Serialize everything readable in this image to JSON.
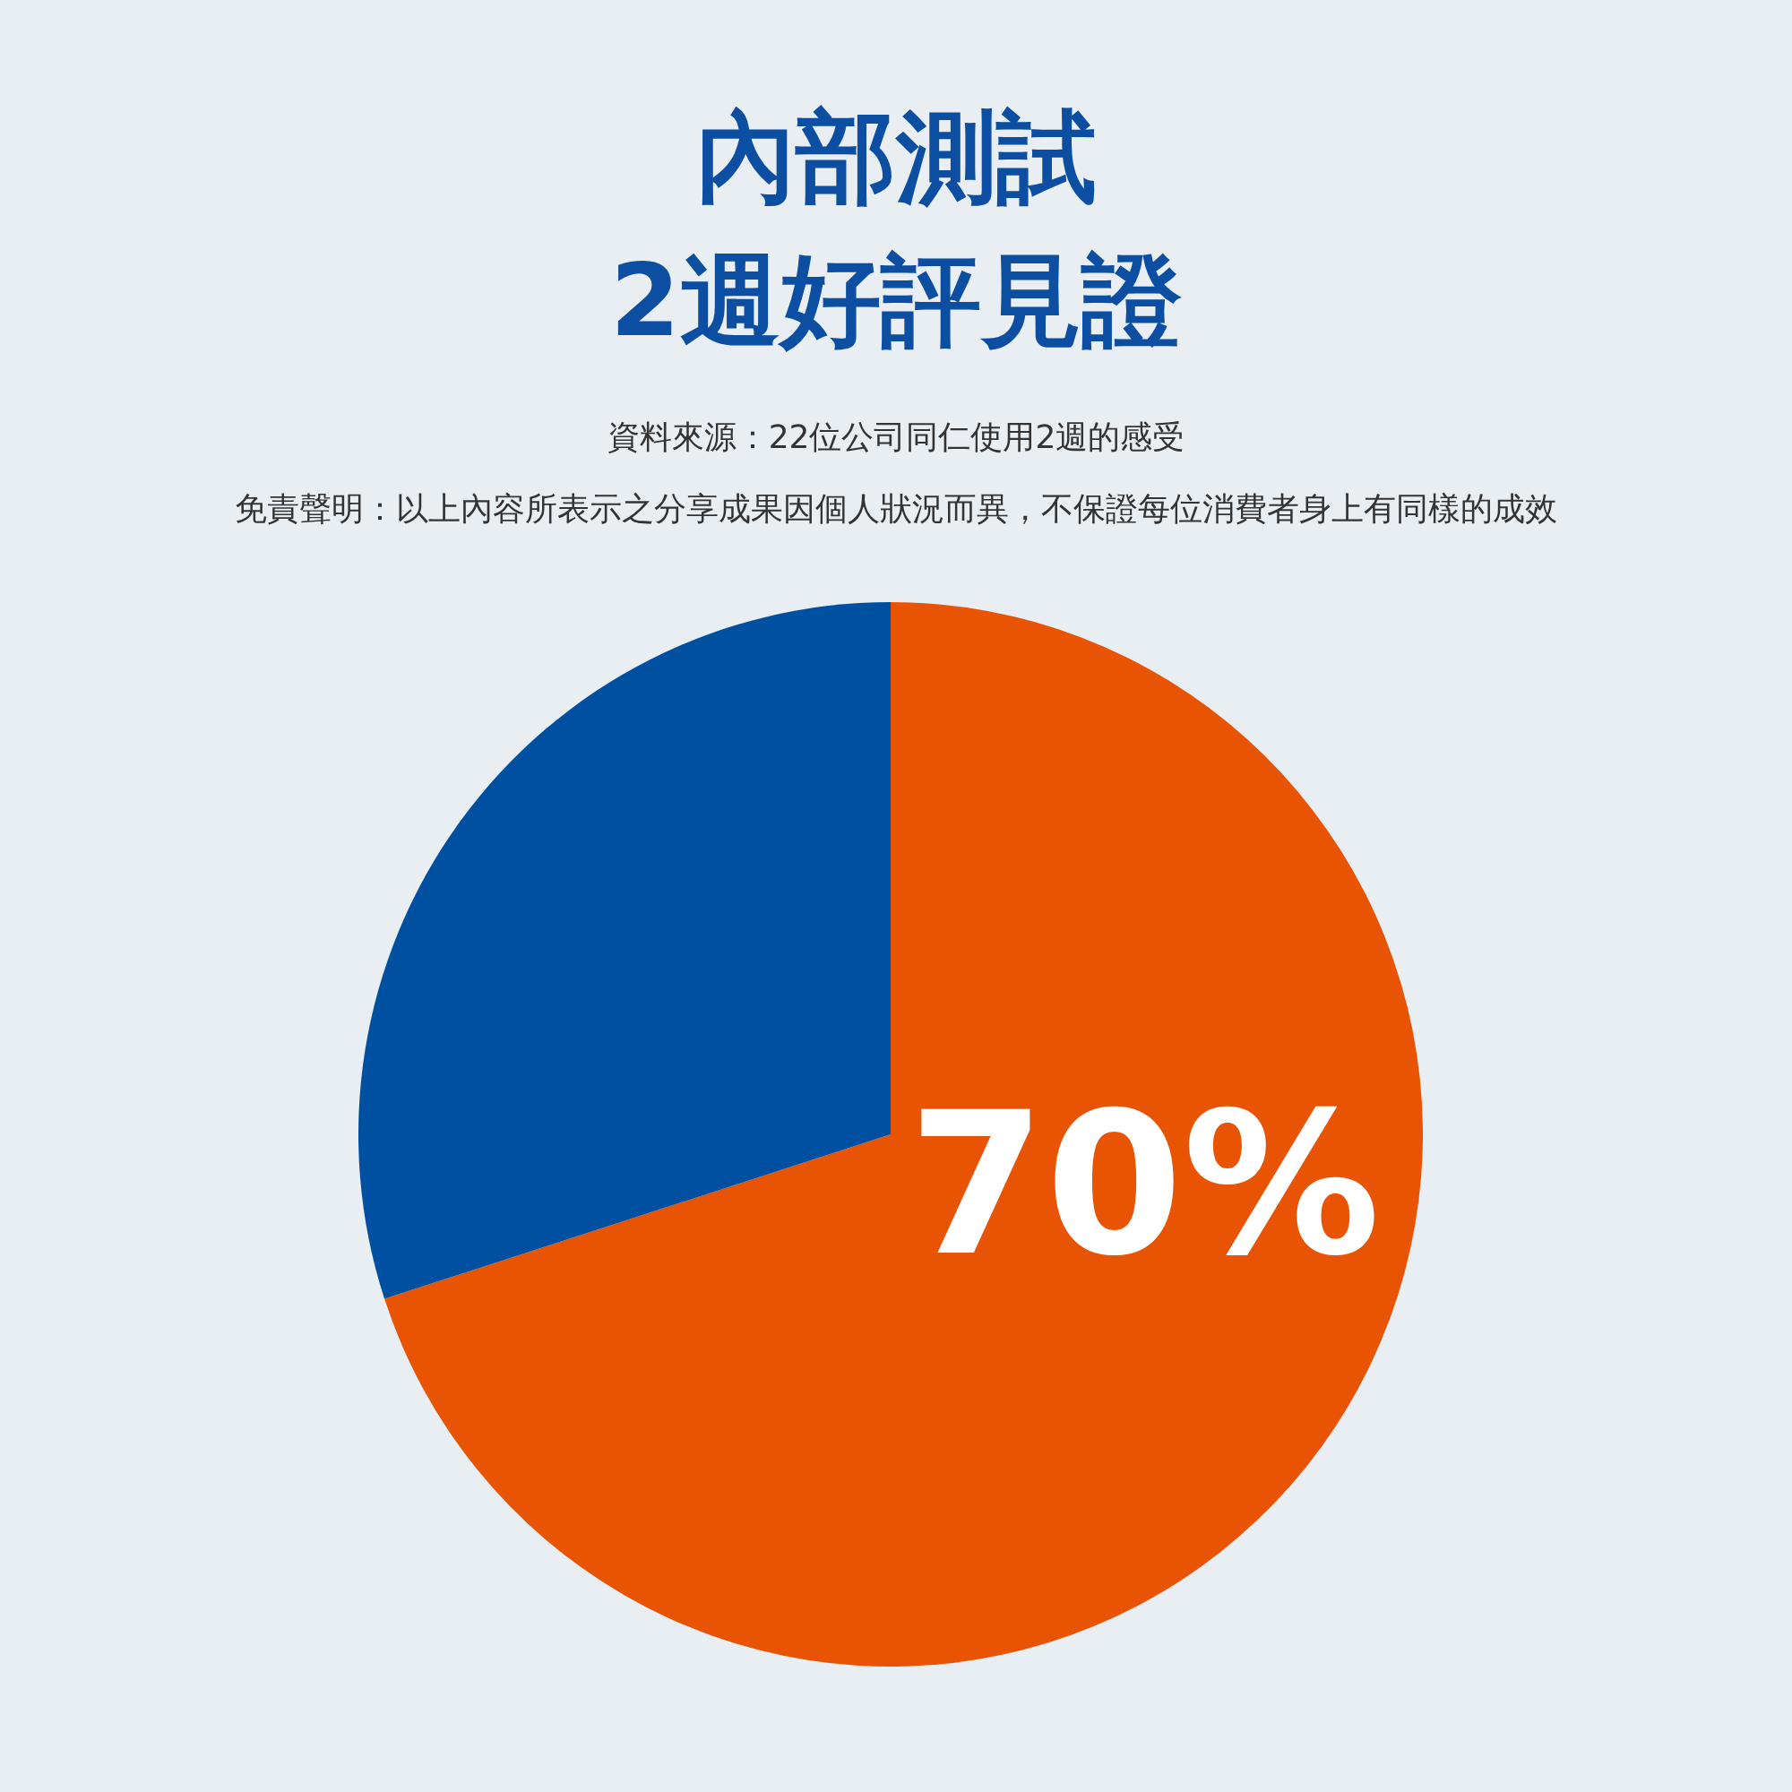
{
  "chart_data": {
    "type": "pie",
    "title": [
      "內部測試",
      "2週好評見證"
    ],
    "annotations": [
      "資料來源：22位公司同仁使用2週的感受",
      "免責聲明：以上內容所表示之分享成果因個人狀況而異，不保證每位消費者身上有同樣的成效"
    ],
    "categories": [
      null,
      null
    ],
    "values": [
      70,
      30
    ],
    "colors": [
      "#e85404",
      "#0050a2"
    ],
    "value_labels": [
      "70%",
      null
    ]
  }
}
